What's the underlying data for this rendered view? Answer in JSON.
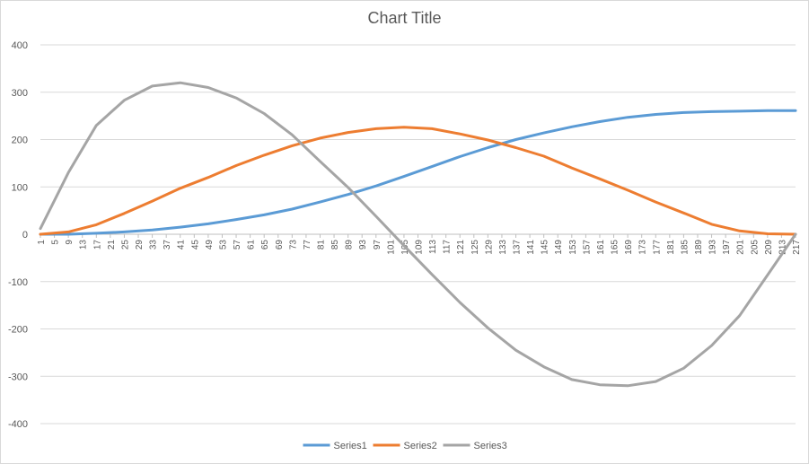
{
  "chart_data": {
    "type": "line",
    "title": "Chart Title",
    "xlabel": "",
    "ylabel": "",
    "ylim": [
      -400,
      400
    ],
    "y_ticks": [
      400,
      300,
      200,
      100,
      0,
      -100,
      -200,
      -300,
      -400
    ],
    "x_tick_labels": [
      "1",
      "5",
      "9",
      "13",
      "17",
      "21",
      "25",
      "29",
      "33",
      "37",
      "41",
      "45",
      "49",
      "53",
      "57",
      "61",
      "65",
      "69",
      "73",
      "77",
      "81",
      "85",
      "89",
      "93",
      "97",
      "101",
      "105",
      "109",
      "113",
      "117",
      "121",
      "125",
      "129",
      "133",
      "137",
      "141",
      "145",
      "149",
      "153",
      "157",
      "161",
      "165",
      "169",
      "173",
      "177",
      "181",
      "185",
      "189",
      "193",
      "197",
      "201",
      "205",
      "209",
      "213",
      "217"
    ],
    "x": [
      1,
      9,
      17,
      25,
      33,
      41,
      49,
      57,
      65,
      73,
      81,
      89,
      97,
      105,
      113,
      121,
      129,
      137,
      145,
      153,
      161,
      169,
      177,
      185,
      193,
      201,
      209,
      217
    ],
    "series": [
      {
        "name": "Series1",
        "color": "#5b9bd5",
        "values": [
          0,
          0,
          2,
          5,
          9,
          15,
          22,
          31,
          41,
          53,
          68,
          84,
          102,
          122,
          143,
          164,
          183,
          200,
          214,
          227,
          238,
          247,
          253,
          257,
          259,
          260,
          261,
          261
        ]
      },
      {
        "name": "Series2",
        "color": "#ed7d31",
        "values": [
          0,
          5,
          20,
          44,
          70,
          97,
          120,
          145,
          167,
          187,
          203,
          215,
          223,
          226,
          223,
          212,
          199,
          183,
          165,
          140,
          117,
          93,
          68,
          45,
          21,
          7,
          1,
          0
        ]
      },
      {
        "name": "Series3",
        "color": "#a5a5a5",
        "values": [
          12,
          130,
          230,
          283,
          313,
          320,
          310,
          288,
          255,
          210,
          154,
          99,
          38,
          -24,
          -85,
          -144,
          -198,
          -245,
          -280,
          -307,
          -318,
          -320,
          -311,
          -283,
          -235,
          -172,
          -86,
          0
        ]
      }
    ],
    "grid": "horizontal",
    "legend": "bottom"
  }
}
